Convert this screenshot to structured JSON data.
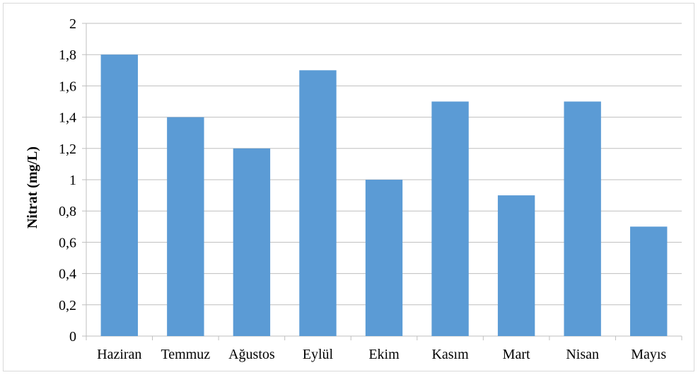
{
  "chart_data": {
    "type": "bar",
    "categories": [
      "Haziran",
      "Temmuz",
      "Ağustos",
      "Eylül",
      "Ekim",
      "Kasım",
      "Mart",
      "Nisan",
      "Mayıs"
    ],
    "values": [
      1.8,
      1.4,
      1.2,
      1.7,
      1.0,
      1.5,
      0.9,
      1.5,
      0.7
    ],
    "title": "",
    "xlabel": "",
    "ylabel": "Nitrat (mg/L)",
    "ylim": [
      0,
      2
    ],
    "yticks": [
      "0",
      "0,2",
      "0,4",
      "0,6",
      "0,8",
      "1",
      "1,2",
      "1,4",
      "1,6",
      "1,8",
      "2"
    ],
    "grid": true,
    "legend": "none",
    "bar_color": "#5b9bd5",
    "grid_color": "#bfbfbf"
  }
}
